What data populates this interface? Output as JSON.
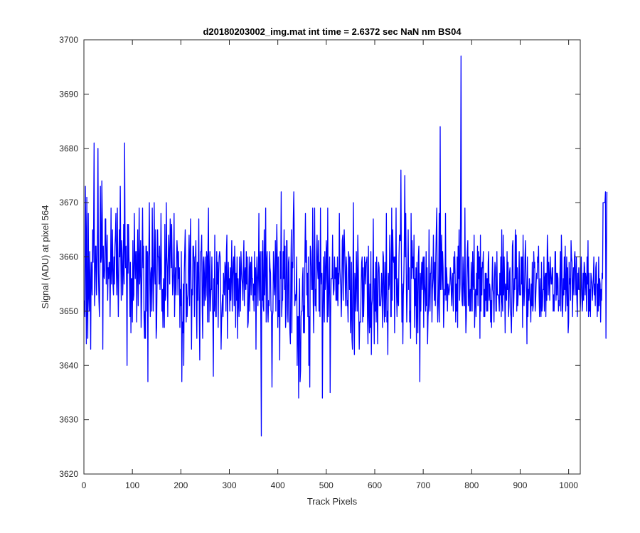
{
  "chart_data": {
    "type": "line",
    "title": "d20180203002_img.mat int time = 2.6372 sec  NaN nm BS04",
    "xlabel": "Track Pixels",
    "ylabel": "Signal (ADU) at pixel 564",
    "xlim": [
      0,
      1024
    ],
    "ylim": [
      3620,
      3700
    ],
    "xticks": [
      0,
      100,
      200,
      300,
      400,
      500,
      600,
      700,
      800,
      900,
      1000
    ],
    "yticks": [
      3620,
      3630,
      3640,
      3650,
      3660,
      3670,
      3680,
      3690,
      3700
    ],
    "grid": false,
    "series": [
      {
        "color": "#0000ff",
        "x_start": 1,
        "x_step": 1,
        "values": [
          3652,
          3649,
          3673,
          3664,
          3644,
          3671,
          3650,
          3645,
          3668,
          3653,
          3650,
          3661,
          3655,
          3643,
          3659,
          3656,
          3653,
          3665,
          3659,
          3665,
          3681,
          3651,
          3654,
          3662,
          3662,
          3653,
          3658,
          3665,
          3680,
          3657,
          3652,
          3649,
          3658,
          3673,
          3659,
          3660,
          3674,
          3667,
          3643,
          3662,
          3657,
          3656,
          3658,
          3667,
          3667,
          3655,
          3660,
          3664,
          3652,
          3658,
          3656,
          3659,
          3659,
          3649,
          3658,
          3669,
          3655,
          3658,
          3665,
          3655,
          3653,
          3660,
          3655,
          3662,
          3664,
          3668,
          3657,
          3653,
          3669,
          3657,
          3649,
          3657,
          3665,
          3660,
          3673,
          3661,
          3652,
          3663,
          3660,
          3653,
          3657,
          3666,
          3655,
          3681,
          3662,
          3658,
          3662,
          3655,
          3640,
          3666,
          3657,
          3666,
          3660,
          3657,
          3649,
          3659,
          3646,
          3656,
          3656,
          3648,
          3663,
          3652,
          3653,
          3668,
          3660,
          3656,
          3661,
          3661,
          3648,
          3658,
          3665,
          3651,
          3658,
          3669,
          3655,
          3658,
          3663,
          3647,
          3652,
          3660,
          3669,
          3658,
          3662,
          3649,
          3645,
          3650,
          3645,
          3662,
          3662,
          3650,
          3661,
          3637,
          3660,
          3661,
          3670,
          3655,
          3649,
          3657,
          3658,
          3650,
          3669,
          3659,
          3650,
          3656,
          3670,
          3658,
          3655,
          3665,
          3645,
          3647,
          3656,
          3665,
          3660,
          3660,
          3655,
          3662,
          3654,
          3657,
          3668,
          3657,
          3650,
          3654,
          3647,
          3656,
          3652,
          3647,
          3666,
          3652,
          3653,
          3670,
          3660,
          3658,
          3649,
          3660,
          3664,
          3660,
          3655,
          3667,
          3665,
          3658,
          3666,
          3659,
          3653,
          3655,
          3659,
          3668,
          3649,
          3655,
          3658,
          3653,
          3659,
          3663,
          3661,
          3653,
          3661,
          3656,
          3658,
          3647,
          3654,
          3651,
          3661,
          3637,
          3648,
          3646,
          3655,
          3640,
          3657,
          3661,
          3665,
          3658,
          3648,
          3655,
          3649,
          3652,
          3653,
          3660,
          3664,
          3651,
          3660,
          3667,
          3655,
          3643,
          3654,
          3653,
          3662,
          3662,
          3659,
          3649,
          3660,
          3660,
          3663,
          3651,
          3645,
          3659,
          3652,
          3658,
          3667,
          3649,
          3641,
          3657,
          3661,
          3661,
          3664,
          3651,
          3645,
          3659,
          3660,
          3651,
          3656,
          3660,
          3652,
          3653,
          3661,
          3660,
          3648,
          3662,
          3669,
          3648,
          3656,
          3661,
          3650,
          3654,
          3654,
          3660,
          3652,
          3649,
          3638,
          3656,
          3650,
          3664,
          3652,
          3649,
          3649,
          3661,
          3655,
          3659,
          3647,
          3657,
          3660,
          3661,
          3660,
          3654,
          3643,
          3648,
          3651,
          3653,
          3649,
          3657,
          3654,
          3653,
          3659,
          3658,
          3650,
          3661,
          3664,
          3645,
          3654,
          3659,
          3654,
          3656,
          3650,
          3658,
          3652,
          3657,
          3663,
          3650,
          3656,
          3659,
          3660,
          3651,
          3662,
          3658,
          3647,
          3657,
          3652,
          3660,
          3645,
          3656,
          3652,
          3649,
          3660,
          3657,
          3650,
          3661,
          3658,
          3656,
          3655,
          3652,
          3659,
          3663,
          3651,
          3657,
          3658,
          3654,
          3661,
          3655,
          3660,
          3647,
          3648,
          3654,
          3660,
          3650,
          3658,
          3659,
          3653,
          3660,
          3656,
          3656,
          3652,
          3655,
          3650,
          3661,
          3653,
          3658,
          3643,
          3656,
          3660,
          3656,
          3651,
          3657,
          3668,
          3652,
          3659,
          3661,
          3647,
          3627,
          3661,
          3652,
          3663,
          3651,
          3650,
          3665,
          3653,
          3658,
          3669,
          3648,
          3659,
          3661,
          3650,
          3648,
          3652,
          3651,
          3661,
          3658,
          3657,
          3650,
          3650,
          3636,
          3649,
          3650,
          3661,
          3658,
          3653,
          3655,
          3663,
          3650,
          3660,
          3666,
          3659,
          3647,
          3660,
          3649,
          3652,
          3641,
          3661,
          3656,
          3672,
          3649,
          3652,
          3652,
          3661,
          3656,
          3665,
          3654,
          3662,
          3647,
          3649,
          3663,
          3663,
          3651,
          3648,
          3659,
          3660,
          3650,
          3646,
          3644,
          3658,
          3665,
          3646,
          3659,
          3658,
          3667,
          3672,
          3664,
          3651,
          3653,
          3652,
          3654,
          3660,
          3640,
          3649,
          3649,
          3634,
          3652,
          3656,
          3637,
          3639,
          3649,
          3650,
          3650,
          3656,
          3658,
          3646,
          3651,
          3646,
          3661,
          3668,
          3659,
          3663,
          3653,
          3657,
          3649,
          3660,
          3640,
          3649,
          3636,
          3662,
          3661,
          3658,
          3654,
          3654,
          3669,
          3652,
          3646,
          3660,
          3669,
          3651,
          3654,
          3650,
          3661,
          3664,
          3658,
          3656,
          3663,
          3650,
          3659,
          3649,
          3669,
          3657,
          3655,
          3657,
          3634,
          3649,
          3660,
          3653,
          3648,
          3661,
          3654,
          3656,
          3663,
          3661,
          3648,
          3669,
          3649,
          3652,
          3656,
          3660,
          3635,
          3649,
          3656,
          3656,
          3656,
          3664,
          3656,
          3653,
          3654,
          3660,
          3656,
          3658,
          3652,
          3658,
          3652,
          3660,
          3651,
          3657,
          3655,
          3668,
          3658,
          3656,
          3654,
          3649,
          3654,
          3663,
          3664,
          3652,
          3661,
          3665,
          3661,
          3656,
          3651,
          3660,
          3658,
          3651,
          3652,
          3648,
          3661,
          3660,
          3654,
          3660,
          3646,
          3649,
          3659,
          3645,
          3643,
          3657,
          3670,
          3649,
          3642,
          3657,
          3655,
          3650,
          3661,
          3656,
          3650,
          3664,
          3659,
          3650,
          3643,
          3648,
          3648,
          3648,
          3655,
          3659,
          3660,
          3648,
          3658,
          3649,
          3653,
          3660,
          3658,
          3655,
          3659,
          3659,
          3660,
          3649,
          3644,
          3662,
          3650,
          3646,
          3655,
          3647,
          3661,
          3642,
          3651,
          3652,
          3656,
          3667,
          3652,
          3644,
          3656,
          3650,
          3659,
          3648,
          3660,
          3651,
          3644,
          3657,
          3659,
          3658,
          3651,
          3651,
          3651,
          3653,
          3657,
          3654,
          3647,
          3661,
          3660,
          3652,
          3648,
          3659,
          3649,
          3654,
          3668,
          3648,
          3650,
          3642,
          3657,
          3654,
          3655,
          3664,
          3660,
          3649,
          3649,
          3669,
          3652,
          3665,
          3660,
          3659,
          3660,
          3646,
          3660,
          3656,
          3669,
          3653,
          3649,
          3656,
          3652,
          3651,
          3660,
          3664,
          3664,
          3663,
          3676,
          3659,
          3648,
          3655,
          3644,
          3653,
          3656,
          3663,
          3675,
          3660,
          3668,
          3657,
          3648,
          3653,
          3657,
          3665,
          3654,
          3658,
          3648,
          3650,
          3645,
          3668,
          3656,
          3663,
          3658,
          3660,
          3656,
          3664,
          3647,
          3656,
          3651,
          3658,
          3644,
          3659,
          3650,
          3646,
          3660,
          3662,
          3651,
          3637,
          3657,
          3650,
          3656,
          3659,
          3654,
          3659,
          3660,
          3647,
          3660,
          3655,
          3653,
          3650,
          3661,
          3651,
          3658,
          3644,
          3649,
          3651,
          3665,
          3653,
          3650,
          3657,
          3657,
          3660,
          3648,
          3654,
          3656,
          3664,
          3656,
          3652,
          3659,
          3651,
          3660,
          3665,
          3669,
          3653,
          3648,
          3651,
          3657,
          3668,
          3648,
          3684,
          3654,
          3659,
          3664,
          3654,
          3661,
          3658,
          3647,
          3651,
          3654,
          3653,
          3668,
          3652,
          3658,
          3656,
          3650,
          3655,
          3654,
          3653,
          3654,
          3655,
          3658,
          3657,
          3653,
          3651,
          3656,
          3657,
          3650,
          3660,
          3657,
          3661,
          3656,
          3648,
          3655,
          3650,
          3660,
          3647,
          3662,
          3656,
          3665,
          3652,
          3655,
          3668,
          3697,
          3656,
          3652,
          3651,
          3660,
          3657,
          3651,
          3651,
          3669,
          3654,
          3646,
          3649,
          3656,
          3661,
          3663,
          3651,
          3660,
          3653,
          3650,
          3654,
          3650,
          3659,
          3656,
          3650,
          3661,
          3655,
          3654,
          3664,
          3647,
          3652,
          3654,
          3649,
          3657,
          3653,
          3662,
          3651,
          3661,
          3656,
          3660,
          3645,
          3664,
          3650,
          3658,
          3653,
          3659,
          3658,
          3661,
          3649,
          3654,
          3649,
          3657,
          3652,
          3657,
          3650,
          3656,
          3650,
          3659,
          3661,
          3652,
          3655,
          3654,
          3648,
          3652,
          3647,
          3655,
          3660,
          3654,
          3653,
          3648,
          3656,
          3659,
          3658,
          3650,
          3650,
          3661,
          3653,
          3653,
          3653,
          3652,
          3650,
          3657,
          3653,
          3660,
          3649,
          3665,
          3652,
          3650,
          3664,
          3653,
          3660,
          3655,
          3646,
          3655,
          3653,
          3652,
          3661,
          3654,
          3659,
          3649,
          3651,
          3657,
          3658,
          3650,
          3649,
          3646,
          3653,
          3662,
          3663,
          3649,
          3652,
          3656,
          3654,
          3665,
          3656,
          3664,
          3650,
          3658,
          3651,
          3653,
          3655,
          3661,
          3653,
          3653,
          3653,
          3660,
          3655,
          3660,
          3647,
          3664,
          3655,
          3651,
          3654,
          3660,
          3663,
          3657,
          3653,
          3644,
          3660,
          3649,
          3654,
          3652,
          3656,
          3654,
          3651,
          3648,
          3655,
          3651,
          3659,
          3650,
          3651,
          3661,
          3658,
          3659,
          3650,
          3652,
          3655,
          3657,
          3656,
          3660,
          3659,
          3662,
          3653,
          3649,
          3656,
          3651,
          3649,
          3659,
          3650,
          3651,
          3654,
          3654,
          3660,
          3650,
          3656,
          3657,
          3649,
          3657,
          3652,
          3664,
          3661,
          3653,
          3659,
          3656,
          3652,
          3660,
          3657,
          3655,
          3655,
          3658,
          3658,
          3650,
          3653,
          3650,
          3654,
          3661,
          3661,
          3652,
          3657,
          3653,
          3657,
          3656,
          3650,
          3652,
          3651,
          3657,
          3661,
          3650,
          3664,
          3660,
          3649,
          3651,
          3656,
          3653,
          3660,
          3654,
          3662,
          3650,
          3655,
          3660,
          3651,
          3658,
          3646,
          3648,
          3659,
          3655,
          3656,
          3652,
          3663,
          3660,
          3659,
          3649,
          3655,
          3658,
          3653,
          3660,
          3661,
          3656,
          3653,
          3660,
          3652,
          3649,
          3657,
          3654,
          3658,
          3654,
          3654,
          3650,
          3653,
          3660,
          3655,
          3650,
          3652,
          3657,
          3652,
          3659,
          3658,
          3653,
          3657,
          3656,
          3650,
          3660,
          3655,
          3663,
          3649,
          3657,
          3650,
          3654,
          3649,
          3657,
          3656,
          3655,
          3652,
          3654,
          3656,
          3660,
          3653,
          3655,
          3651,
          3658,
          3659,
          3654,
          3649,
          3655,
          3650,
          3660,
          3651,
          3656,
          3655,
          3648,
          3654,
          3652,
          3657,
          3656,
          3670,
          3670,
          3670,
          3670,
          3670,
          3672,
          3645,
          3660,
          3672
        ]
      }
    ]
  }
}
